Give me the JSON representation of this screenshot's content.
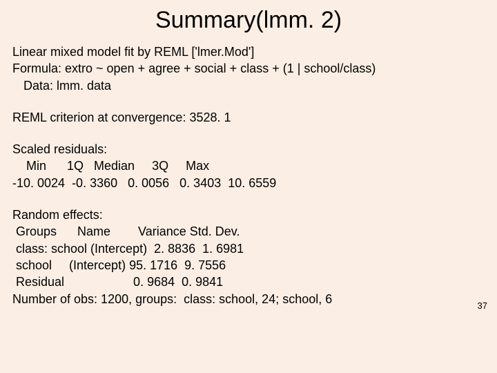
{
  "title": "Summary(lmm. 2)",
  "l1": "Linear mixed model fit by REML ['lmer.Mod']",
  "l2": "Formula: extro ~ open + agree + social + class + (1 | school/class)",
  "l3": "Data: lmm. data",
  "l4": "REML criterion at convergence: 3528. 1",
  "l5": "Scaled residuals:",
  "l6": "    Min      1Q   Median     3Q     Max",
  "l7": "-10. 0024  -0. 3360   0. 0056   0. 3403  10. 6559",
  "l8": "Random effects:",
  "l9": " Groups      Name        Variance Std. Dev.",
  "l10": " class: school (Intercept)  2. 8836  1. 6981",
  "l11": " school     (Intercept) 95. 1716  9. 7556",
  "l12": " Residual                    0. 9684  0. 9841",
  "l13": "Number of obs: 1200, groups:  class: school, 24; school, 6",
  "pagenum": "37"
}
